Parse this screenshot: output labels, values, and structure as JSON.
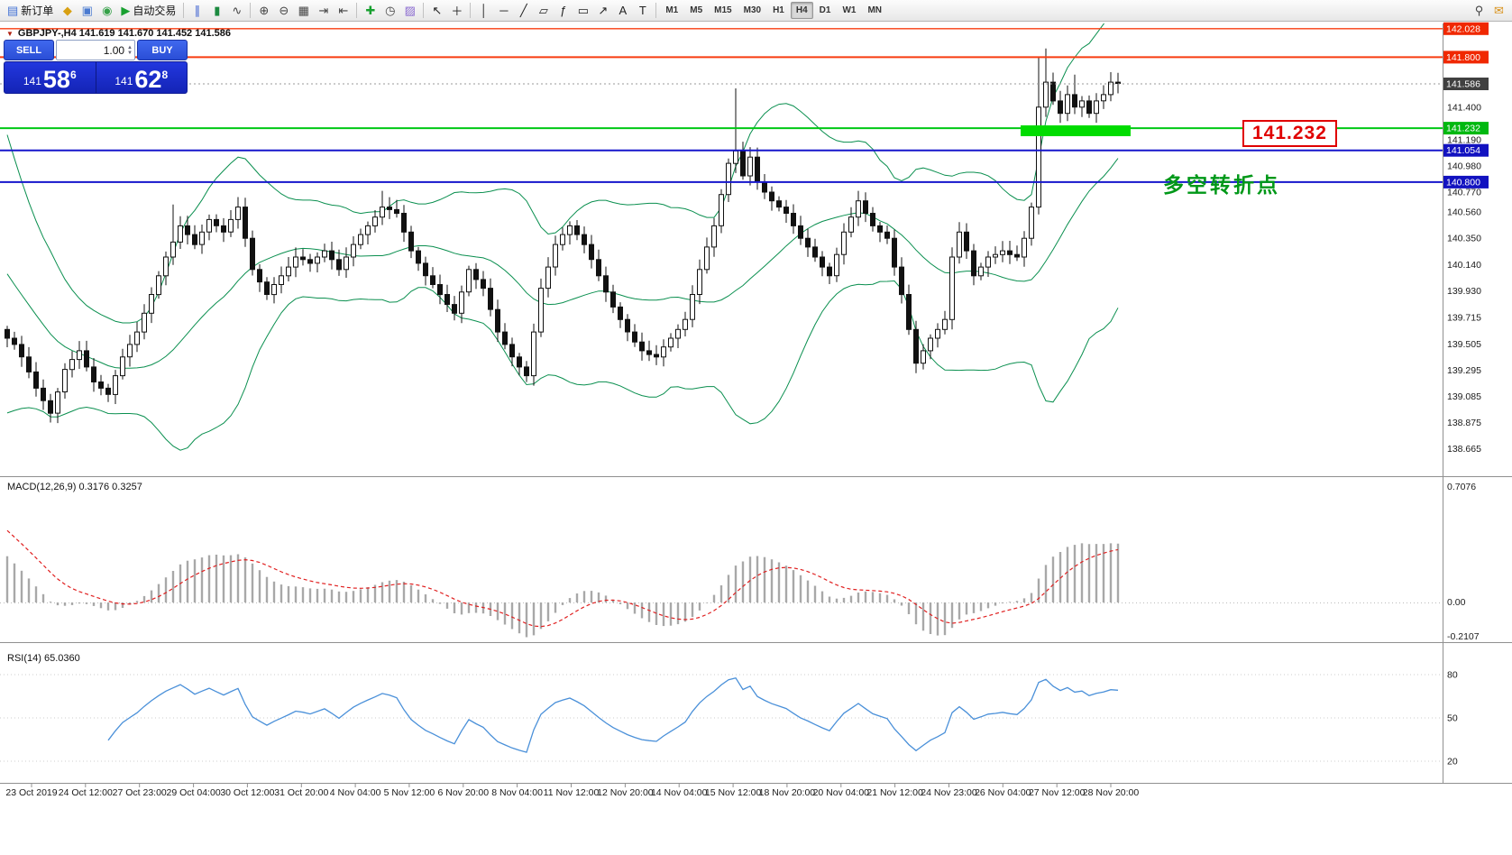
{
  "toolbar": {
    "items": [
      {
        "kind": "btn",
        "name": "new-order",
        "glyph": "▤",
        "color": "#3f6fd4",
        "label": "新订单"
      },
      {
        "kind": "btn",
        "name": "market-watch",
        "glyph": "◆",
        "color": "#d8a012"
      },
      {
        "kind": "btn",
        "name": "data-window",
        "glyph": "▣",
        "color": "#4a7ad0"
      },
      {
        "kind": "btn",
        "name": "terminal",
        "glyph": "◉",
        "color": "#35a048"
      },
      {
        "kind": "btn",
        "name": "auto-trading",
        "glyph": "▶",
        "color": "#18a030",
        "label": "自动交易"
      },
      {
        "kind": "sep"
      },
      {
        "kind": "btn",
        "name": "bar-chart-mode",
        "glyph": "∥",
        "color": "#3a5fd0"
      },
      {
        "kind": "btn",
        "name": "candle-chart-mode",
        "glyph": "▮",
        "color": "#1c8a40"
      },
      {
        "kind": "btn",
        "name": "line-chart-mode",
        "glyph": "∿",
        "color": "#444444"
      },
      {
        "kind": "sep"
      },
      {
        "kind": "btn",
        "name": "zoom-in",
        "glyph": "⊕",
        "color": "#444444"
      },
      {
        "kind": "btn",
        "name": "zoom-out",
        "glyph": "⊖",
        "color": "#444444"
      },
      {
        "kind": "btn",
        "name": "tile-windows",
        "glyph": "▦",
        "color": "#444444"
      },
      {
        "kind": "btn",
        "name": "auto-scroll",
        "glyph": "⇥",
        "color": "#444444"
      },
      {
        "kind": "btn",
        "name": "chart-shift",
        "glyph": "⇤",
        "color": "#444444"
      },
      {
        "kind": "sep"
      },
      {
        "kind": "btn",
        "name": "indicators",
        "glyph": "✚",
        "color": "#18a030"
      },
      {
        "kind": "btn",
        "name": "periods",
        "glyph": "◷",
        "color": "#444444"
      },
      {
        "kind": "btn",
        "name": "templates",
        "glyph": "▨",
        "color": "#8a6ad0"
      },
      {
        "kind": "sep"
      },
      {
        "kind": "btn",
        "name": "cursor",
        "glyph": "↖",
        "color": "#222222"
      },
      {
        "kind": "btn",
        "name": "crosshair",
        "glyph": "＋",
        "color": "#222222"
      },
      {
        "kind": "sep"
      },
      {
        "kind": "btn",
        "name": "vertical-line",
        "glyph": "│",
        "color": "#222222"
      },
      {
        "kind": "btn",
        "name": "horizontal-line",
        "glyph": "─",
        "color": "#222222"
      },
      {
        "kind": "btn",
        "name": "trend-line",
        "glyph": "╱",
        "color": "#222222"
      },
      {
        "kind": "btn",
        "name": "channel",
        "glyph": "▱",
        "color": "#222222"
      },
      {
        "kind": "btn",
        "name": "fibonacci",
        "glyph": "ƒ",
        "color": "#222222"
      },
      {
        "kind": "btn",
        "name": "shapes",
        "glyph": "▭",
        "color": "#222222"
      },
      {
        "kind": "btn",
        "name": "arrows",
        "glyph": "↗",
        "color": "#222222"
      },
      {
        "kind": "btn",
        "name": "text",
        "glyph": "A",
        "color": "#222222"
      },
      {
        "kind": "btn",
        "name": "text-label",
        "glyph": "T",
        "color": "#222222"
      },
      {
        "kind": "sep"
      },
      {
        "kind": "tf",
        "label": "M1"
      },
      {
        "kind": "tf",
        "label": "M5"
      },
      {
        "kind": "tf",
        "label": "M15"
      },
      {
        "kind": "tf",
        "label": "M30"
      },
      {
        "kind": "tf",
        "label": "H1"
      },
      {
        "kind": "tf",
        "label": "H4",
        "active": true
      },
      {
        "kind": "tf",
        "label": "D1"
      },
      {
        "kind": "tf",
        "label": "W1"
      },
      {
        "kind": "tf",
        "label": "MN"
      },
      {
        "kind": "spacer"
      },
      {
        "kind": "btn",
        "name": "search",
        "glyph": "⚲",
        "color": "#444444"
      },
      {
        "kind": "btn",
        "name": "chat",
        "glyph": "✉",
        "color": "#d89018"
      }
    ]
  },
  "chart_header": {
    "collapse_icon": "▼",
    "symbol_info": "GBPJPY-,H4  141.619 141.670 141.452 141.586"
  },
  "trade_panel": {
    "sell_label": "SELL",
    "buy_label": "BUY",
    "volume": "1.00",
    "sell_price": {
      "prefix": "141",
      "big": "58",
      "sup": "6"
    },
    "buy_price": {
      "prefix": "141",
      "big": "62",
      "sup": "8"
    }
  },
  "annotations": {
    "big_price_label": "141.232",
    "turning_point_text": "多空转折点"
  },
  "indicators": {
    "macd_label": "MACD(12,26,9) 0.3176 0.3257",
    "rsi_label": "RSI(14) 65.0360"
  },
  "price_axis": {
    "regular": [
      "141.400",
      "141.190",
      "140.980",
      "140.770",
      "140.560",
      "140.350",
      "140.140",
      "139.930",
      "139.715",
      "139.505",
      "139.295",
      "139.085",
      "138.875",
      "138.665"
    ],
    "macd_axis": [
      {
        "v": 0.7076,
        "label": "0.7076"
      },
      {
        "v": 0,
        "label": "0.00"
      },
      {
        "v": -0.2107,
        "label": "-0.2107"
      }
    ],
    "rsi_axis": [
      {
        "v": 80,
        "label": "80"
      },
      {
        "v": 50,
        "label": "50"
      },
      {
        "v": 20,
        "label": "20"
      }
    ]
  },
  "hlines": [
    {
      "name": "resistance-line-142028",
      "price": 142.028,
      "label": "142.028",
      "color": "#f83c10",
      "label_bg": "#f02800",
      "width": 1.4,
      "dash": ""
    },
    {
      "name": "resistance-line-141800",
      "price": 141.8,
      "label": "141.800",
      "color": "#f83c10",
      "label_bg": "#f02800",
      "width": 2,
      "dash": ""
    },
    {
      "name": "bid-price-line",
      "price": 141.586,
      "label": "141.586",
      "color": "#9a9a9a",
      "label_bg": "#404040",
      "width": 1,
      "dash": "2 3"
    },
    {
      "name": "key-level-line-141232",
      "price": 141.232,
      "label": "141.232",
      "color": "#00c814",
      "label_bg": "#00b810",
      "width": 2,
      "dash": ""
    },
    {
      "name": "turn-level-line-141054",
      "price": 141.054,
      "label": "141.054",
      "color": "#1616cc",
      "label_bg": "#1212c0",
      "width": 2,
      "dash": ""
    },
    {
      "name": "turn-level-line-140800",
      "price": 140.8,
      "label": "140.800",
      "color": "#1616cc",
      "label_bg": "#1212c0",
      "width": 2,
      "dash": ""
    }
  ],
  "zone_bar": {
    "from_candle": 140.5,
    "to_candle": 155.8,
    "price": 141.232,
    "color": "#00dc00",
    "thickness": 12
  },
  "time_axis": [
    "23 Oct 2019",
    "24 Oct 12:00",
    "27 Oct 23:00",
    "29 Oct 04:00",
    "30 Oct 12:00",
    "31 Oct 20:00",
    "4 Nov 04:00",
    "5 Nov 12:00",
    "6 Nov 20:00",
    "8 Nov 04:00",
    "11 Nov 12:00",
    "12 Nov 20:00",
    "14 Nov 04:00",
    "15 Nov 12:00",
    "18 Nov 20:00",
    "20 Nov 04:00",
    "21 Nov 12:00",
    "24 Nov 23:00",
    "26 Nov 04:00",
    "27 Nov 12:00",
    "28 Nov 20:00"
  ],
  "chart_data": {
    "type": "candlestick",
    "symbol": "GBPJPY-",
    "timeframe": "H4",
    "last_ohlc": {
      "open": 141.619,
      "high": 141.67,
      "low": 141.452,
      "close": 141.586
    },
    "visible_price_range": [
      138.665,
      142.028
    ],
    "first_open": 139.62,
    "closes": [
      139.55,
      139.5,
      139.4,
      139.28,
      139.15,
      139.05,
      138.95,
      139.12,
      139.3,
      139.38,
      139.45,
      139.32,
      139.2,
      139.15,
      139.1,
      139.25,
      139.4,
      139.5,
      139.6,
      139.75,
      139.9,
      140.05,
      140.2,
      140.32,
      140.45,
      140.38,
      140.3,
      140.4,
      140.5,
      140.45,
      140.4,
      140.5,
      140.6,
      140.35,
      140.1,
      140.0,
      139.9,
      139.98,
      140.05,
      140.12,
      140.2,
      140.18,
      140.15,
      140.2,
      140.25,
      140.18,
      140.1,
      140.2,
      140.3,
      140.38,
      140.45,
      140.52,
      140.6,
      140.58,
      140.55,
      140.4,
      140.25,
      140.15,
      140.05,
      139.98,
      139.9,
      139.82,
      139.75,
      139.92,
      140.1,
      140.02,
      139.95,
      139.78,
      139.6,
      139.5,
      139.4,
      139.32,
      139.25,
      139.6,
      139.95,
      140.12,
      140.3,
      140.38,
      140.45,
      140.38,
      140.3,
      140.18,
      140.05,
      139.92,
      139.8,
      139.7,
      139.6,
      139.52,
      139.45,
      139.42,
      139.4,
      139.48,
      139.55,
      139.62,
      139.7,
      139.9,
      140.1,
      140.28,
      140.45,
      140.7,
      140.95,
      141.05,
      140.85,
      141.0,
      140.8,
      140.72,
      140.65,
      140.6,
      140.55,
      140.45,
      140.35,
      140.28,
      140.2,
      140.12,
      140.05,
      140.22,
      140.4,
      140.52,
      140.65,
      140.55,
      140.45,
      140.4,
      140.35,
      140.12,
      139.9,
      139.62,
      139.35,
      139.45,
      139.55,
      139.62,
      139.7,
      140.2,
      140.4,
      140.25,
      140.05,
      140.12,
      140.2,
      140.22,
      140.25,
      140.22,
      140.2,
      140.35,
      140.6,
      141.4,
      141.6,
      141.45,
      141.35,
      141.5,
      141.4,
      141.45,
      141.35,
      141.45,
      141.5,
      141.6,
      141.59
    ],
    "wick_overrides": {
      "6": {
        "low": 138.875
      },
      "23": {
        "high": 140.62
      },
      "52": {
        "high": 140.73
      },
      "101": {
        "high": 141.55
      },
      "118": {
        "high": 140.73
      },
      "126": {
        "low": 139.3
      },
      "143": {
        "high": 141.8
      },
      "144": {
        "high": 141.87
      },
      "148": {
        "high": 141.66
      }
    },
    "overlays": {
      "bollinger_period": 20,
      "bollinger_dev": 2
    },
    "macd": {
      "fast": 12,
      "slow": 26,
      "signal": 9,
      "current": [
        0.3176,
        0.3257
      ],
      "axis_max": 0.7076,
      "axis_min": -0.2107
    },
    "rsi": {
      "period": 14,
      "current": 65.036,
      "levels": [
        80,
        50,
        20
      ]
    }
  }
}
